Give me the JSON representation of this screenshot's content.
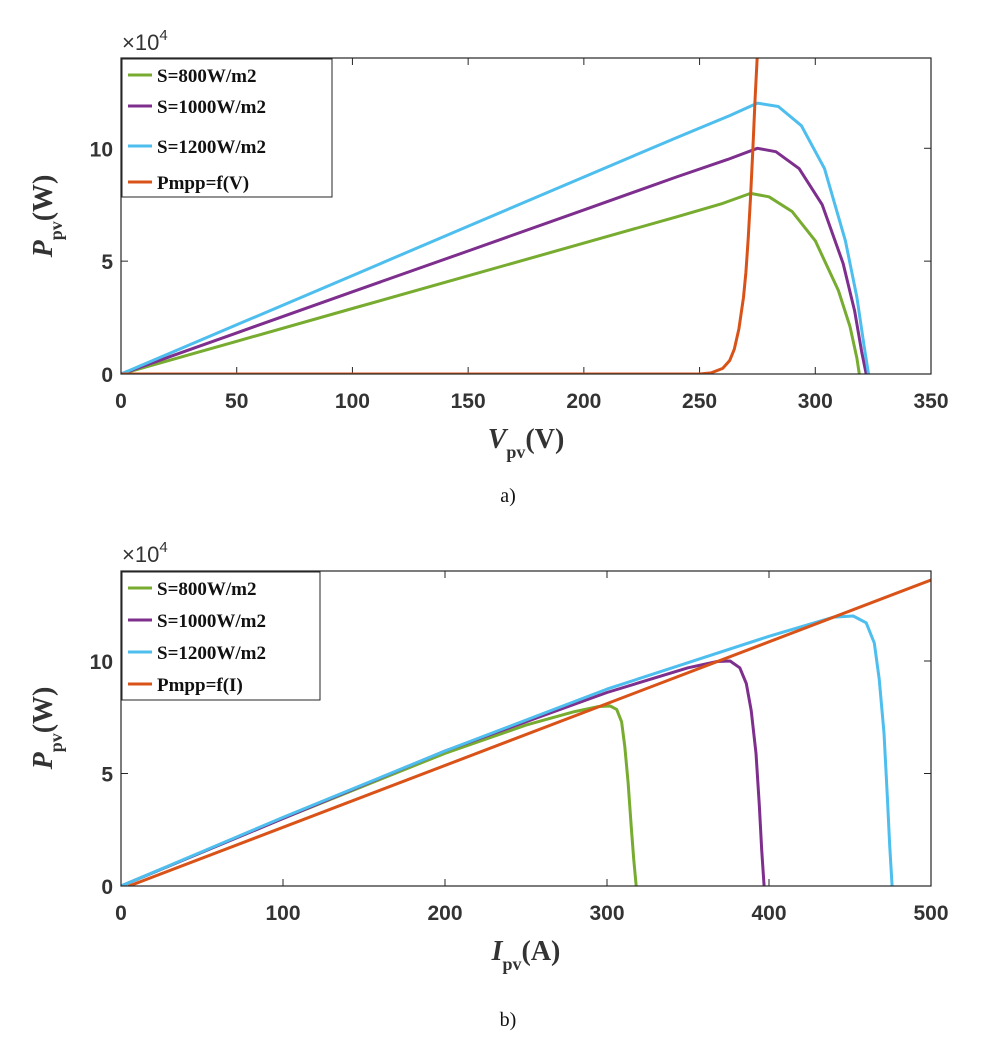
{
  "colors": {
    "green": "#77AC30",
    "purple": "#7E2F8E",
    "blue": "#4DBEEE",
    "orange": "#D95319",
    "axis": "#262626"
  },
  "chart_data": [
    {
      "type": "line",
      "caption": "a)",
      "multiplier_base": "×10",
      "multiplier_exp": "4",
      "xlabel_main": "V",
      "xlabel_sub": "pv",
      "xlabel_unit": "(V)",
      "ylabel_main": "P",
      "ylabel_sub": "pv",
      "ylabel_unit": "(W)",
      "xlim": [
        0,
        350
      ],
      "ylim": [
        0,
        14
      ],
      "xticks": [
        0,
        50,
        100,
        150,
        200,
        250,
        300,
        350
      ],
      "yticks": [
        0,
        5,
        10
      ],
      "series": [
        {
          "name": "S=800W/m2",
          "color": "#77AC30",
          "x": [
            0,
            50,
            100,
            150,
            200,
            240,
            260,
            272,
            280,
            290,
            300,
            310,
            315,
            318,
            319
          ],
          "y": [
            0,
            1.45,
            2.9,
            4.35,
            5.8,
            6.96,
            7.56,
            8.0,
            7.85,
            7.2,
            5.9,
            3.7,
            2.1,
            0.7,
            0
          ]
        },
        {
          "name": "S=1000W/m2",
          "color": "#7E2F8E",
          "x": [
            0,
            50,
            100,
            150,
            200,
            240,
            262,
            275,
            283,
            293,
            303,
            312,
            317,
            320,
            322
          ],
          "y": [
            0,
            1.82,
            3.64,
            5.45,
            7.27,
            8.73,
            9.5,
            10.0,
            9.85,
            9.1,
            7.5,
            4.9,
            2.8,
            1.0,
            0
          ]
        },
        {
          "name": "S=1200W/m2",
          "color": "#4DBEEE",
          "x": [
            0,
            50,
            100,
            150,
            200,
            240,
            263,
            275,
            284,
            294,
            304,
            313,
            318,
            321,
            323
          ],
          "y": [
            0,
            2.18,
            4.36,
            6.55,
            8.73,
            10.47,
            11.45,
            12.0,
            11.85,
            11.0,
            9.1,
            5.9,
            3.4,
            1.3,
            0
          ]
        },
        {
          "name": "Pmpp=f(V)",
          "color": "#D95319",
          "x": [
            0,
            250,
            255,
            260,
            263,
            265,
            267,
            269,
            270,
            271,
            272,
            273,
            274,
            275
          ],
          "y": [
            0,
            0,
            0.05,
            0.25,
            0.6,
            1.1,
            2.0,
            3.4,
            4.5,
            6.0,
            7.8,
            9.9,
            12.2,
            14.2
          ]
        }
      ],
      "legend": {
        "location": "top-left",
        "labels": [
          "S=800W/m2",
          "S=1000W/m2",
          "S=1200W/m2",
          "Pmpp=f(V)"
        ]
      }
    },
    {
      "type": "line",
      "caption": "b)",
      "multiplier_base": "×10",
      "multiplier_exp": "4",
      "xlabel_main": "I",
      "xlabel_sub": "pv",
      "xlabel_unit": "(A)",
      "ylabel_main": "P",
      "ylabel_sub": "pv",
      "ylabel_unit": "(W)",
      "xlim": [
        0,
        500
      ],
      "ylim": [
        0,
        14
      ],
      "xticks": [
        0,
        100,
        200,
        300,
        400,
        500
      ],
      "yticks": [
        0,
        5,
        10
      ],
      "series": [
        {
          "name": "S=800W/m2",
          "color": "#77AC30",
          "x": [
            0,
            100,
            200,
            250,
            280,
            295,
            302,
            306,
            309,
            311,
            313,
            315,
            316.5,
            318
          ],
          "y": [
            0,
            3.0,
            5.9,
            7.15,
            7.75,
            7.98,
            8.0,
            7.85,
            7.3,
            6.2,
            4.6,
            2.6,
            1.2,
            0
          ]
        },
        {
          "name": "S=1000W/m2",
          "color": "#7E2F8E",
          "x": [
            0,
            100,
            200,
            300,
            350,
            368,
            376,
            382,
            386,
            389,
            392,
            394,
            395.5,
            397
          ],
          "y": [
            0,
            3.0,
            6.0,
            8.6,
            9.7,
            9.98,
            10.0,
            9.7,
            9.0,
            7.8,
            5.9,
            3.6,
            1.6,
            0
          ]
        },
        {
          "name": "S=1200W/m2",
          "color": "#4DBEEE",
          "x": [
            0,
            100,
            200,
            300,
            400,
            440,
            452,
            460,
            465,
            468,
            471,
            473,
            474.5,
            476
          ],
          "y": [
            0,
            3.05,
            6.0,
            8.75,
            11.1,
            11.95,
            12.0,
            11.7,
            10.8,
            9.2,
            6.8,
            4.0,
            1.8,
            0
          ]
        },
        {
          "name": "Pmpp=f(I)",
          "color": "#D95319",
          "x": [
            5,
            500
          ],
          "y": [
            0,
            13.6
          ]
        }
      ],
      "legend": {
        "location": "top-left",
        "labels": [
          "S=800W/m2",
          "S=1000W/m2",
          "S=1200W/m2",
          "Pmpp=f(I)"
        ]
      }
    }
  ]
}
